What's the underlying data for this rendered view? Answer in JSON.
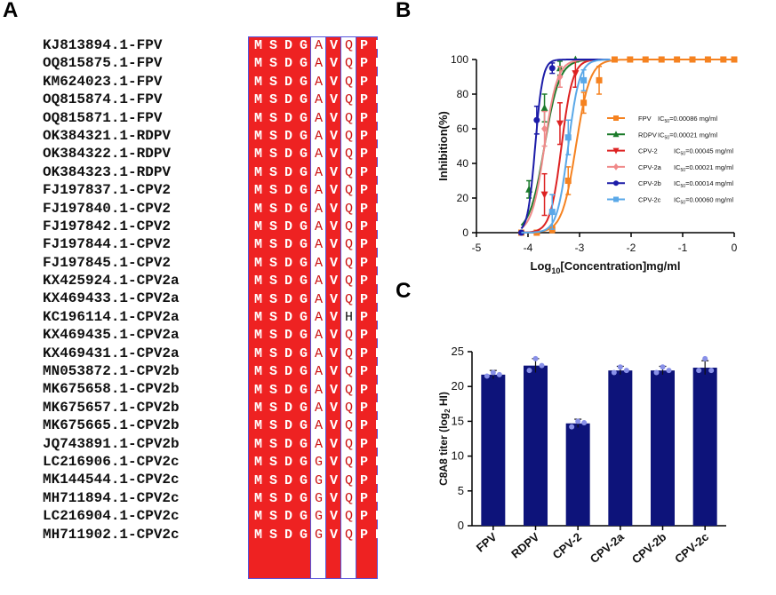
{
  "panels": {
    "a": "A",
    "b": "B",
    "c": "C"
  },
  "alignment": {
    "rows": [
      {
        "name": "KJ813894.1-FPV",
        "seq": "MSDGAVQPD"
      },
      {
        "name": "OQ815875.1-FPV",
        "seq": "MSDGAVQPD"
      },
      {
        "name": "KM624023.1-FPV",
        "seq": "MSDGAVQPD"
      },
      {
        "name": "OQ815874.1-FPV",
        "seq": "MSDGAVQPD"
      },
      {
        "name": "OQ815871.1-FPV",
        "seq": "MSDGAVQPD"
      },
      {
        "name": "OK384321.1-RDPV",
        "seq": "MSDGAVQPD"
      },
      {
        "name": "OK384322.1-RDPV",
        "seq": "MSDGAVQPD"
      },
      {
        "name": "OK384323.1-RDPV",
        "seq": "MSDGAVQPD"
      },
      {
        "name": "FJ197837.1-CPV2",
        "seq": "MSDGAVQPD"
      },
      {
        "name": "FJ197840.1-CPV2",
        "seq": "MSDGAVQPD"
      },
      {
        "name": "FJ197842.1-CPV2",
        "seq": "MSDGAVQPD"
      },
      {
        "name": "FJ197844.1-CPV2",
        "seq": "MSDGAVQPD"
      },
      {
        "name": "FJ197845.1-CPV2",
        "seq": "MSDGAVQPD"
      },
      {
        "name": "KX425924.1-CPV2a",
        "seq": "MSDGAVQPD"
      },
      {
        "name": "KX469433.1-CPV2a",
        "seq": "MSDGAVQPD"
      },
      {
        "name": "KC196114.1-CPV2a",
        "seq": "MSDGAVHPD"
      },
      {
        "name": "KX469435.1-CPV2a",
        "seq": "MSDGAVQPD"
      },
      {
        "name": "KX469431.1-CPV2a",
        "seq": "MSDGAVQPD"
      },
      {
        "name": "MN053872.1-CPV2b",
        "seq": "MSDGAVQPD"
      },
      {
        "name": "MK675658.1-CPV2b",
        "seq": "MSDGAVQPD"
      },
      {
        "name": "MK675657.1-CPV2b",
        "seq": "MSDGAVQPD"
      },
      {
        "name": "MK675665.1-CPV2b",
        "seq": "MSDGAVQPD"
      },
      {
        "name": "JQ743891.1-CPV2b",
        "seq": "MSDGAVQPD"
      },
      {
        "name": "LC216906.1-CPV2c",
        "seq": "MSDGGVQPD"
      },
      {
        "name": "MK144544.1-CPV2c",
        "seq": "MSDGGVQPD"
      },
      {
        "name": "MH711894.1-CPV2c",
        "seq": "MSDGGVQPD"
      },
      {
        "name": "LC216904.1-CPV2c",
        "seq": "MSDGGVQPD"
      },
      {
        "name": "MH711902.1-CPV2c",
        "seq": "MSDGGVQPD"
      }
    ],
    "variable_columns": [
      4,
      6
    ],
    "colors": {
      "conserved_bg": "#ee2222",
      "variable_text": "#cc1111",
      "frame": "#5555dd"
    }
  },
  "chart_data": [
    {
      "type": "line",
      "panel": "B",
      "xlabel_prefix": "Log",
      "xlabel_sub": "10",
      "xlabel_rest": "[Concentration]mg/ml",
      "ylabel": "Inhibition(%)",
      "xlim": [
        -5,
        0
      ],
      "ylim": [
        0,
        100
      ],
      "xticks": [
        -5,
        -4,
        -3,
        -2,
        -1,
        0
      ],
      "yticks": [
        0,
        20,
        40,
        60,
        80,
        100
      ],
      "series": [
        {
          "name": "FPV",
          "ic50_label": "IC",
          "ic50_sub": "50",
          "ic50_value": "=0.00086 mg/ml",
          "log_ic50": -3.07,
          "hill": 3.2,
          "color": "#f58220",
          "marker": "square",
          "x": [
            -4.13,
            -3.83,
            -3.53,
            -3.22,
            -2.92,
            -2.62,
            -2.32,
            -2.02,
            -1.72,
            -1.41,
            -1.11,
            -0.81,
            -0.51,
            -0.21,
            0
          ],
          "y": [
            0,
            0,
            2,
            30,
            75,
            88,
            100,
            100,
            100,
            100,
            100,
            100,
            100,
            100,
            100
          ],
          "err": [
            0,
            0,
            2,
            8,
            6,
            8,
            0,
            0,
            0,
            0,
            0,
            0,
            0,
            0,
            0
          ]
        },
        {
          "name": "RDPV",
          "ic50_label": "IC",
          "ic50_sub": "50",
          "ic50_value": "=0.00021 mg/ml",
          "log_ic50": -3.68,
          "hill": 3.0,
          "color": "#1a7a2a",
          "marker": "triangle",
          "x": [
            -3.98,
            -3.68,
            -3.38,
            -3.08
          ],
          "y": [
            25,
            72,
            95,
            100
          ],
          "err": [
            5,
            8,
            4,
            0
          ]
        },
        {
          "name": "CPV-2",
          "ic50_label": "IC",
          "ic50_sub": "50",
          "ic50_value": "=0.00045 mg/ml",
          "log_ic50": -3.35,
          "hill": 4.0,
          "color": "#dd2222",
          "marker": "triangle-down",
          "x": [
            -3.68,
            -3.38,
            -3.08
          ],
          "y": [
            22,
            63,
            92
          ],
          "err": [
            12,
            12,
            8
          ]
        },
        {
          "name": "CPV-2a",
          "ic50_label": "IC",
          "ic50_sub": "50",
          "ic50_value": "=0.00021 mg/ml",
          "log_ic50": -3.68,
          "hill": 3.5,
          "color": "#f08a8a",
          "marker": "diamond",
          "x": [
            -3.68,
            -3.38
          ],
          "y": [
            60,
            90
          ],
          "err": [
            10,
            6
          ]
        },
        {
          "name": "CPV-2b",
          "ic50_label": "IC",
          "ic50_sub": "50",
          "ic50_value": "=0.00014 mg/ml",
          "log_ic50": -3.86,
          "hill": 6.0,
          "color": "#1c1ca8",
          "marker": "circle",
          "x": [
            -4.13,
            -3.83,
            -3.53
          ],
          "y": [
            0,
            65,
            95
          ],
          "err": [
            0,
            8,
            3
          ]
        },
        {
          "name": "CPV-2c",
          "ic50_label": "IC",
          "ic50_sub": "50",
          "ic50_value": "=0.00060 mg/ml",
          "log_ic50": -3.22,
          "hill": 4.0,
          "color": "#5aa8e8",
          "marker": "square",
          "x": [
            -3.53,
            -3.22,
            -2.92
          ],
          "y": [
            12,
            55,
            88
          ],
          "err": [
            10,
            10,
            6
          ]
        }
      ]
    },
    {
      "type": "bar",
      "panel": "C",
      "ylabel_main": "C8A8 titer (log",
      "ylabel_sub": "2",
      "ylabel_end": " HI)",
      "categories": [
        "FPV",
        "RDPV",
        "CPV-2",
        "CPV-2a",
        "CPV-2b",
        "CPV-2c"
      ],
      "values": [
        21.7,
        23.0,
        14.7,
        22.3,
        22.3,
        22.7
      ],
      "err": [
        0.6,
        1.0,
        0.6,
        0.6,
        0.6,
        1.0
      ],
      "points": [
        [
          21.5,
          22.0,
          21.7
        ],
        [
          22.3,
          24.0,
          23.0
        ],
        [
          14.2,
          15.0,
          14.8
        ],
        [
          22.0,
          22.8,
          22.3
        ],
        [
          22.0,
          22.8,
          22.3
        ],
        [
          22.3,
          24.0,
          22.3
        ]
      ],
      "ylim": [
        0,
        25
      ],
      "yticks": [
        0,
        5,
        10,
        15,
        20,
        25
      ],
      "bar_color": "#0d137a",
      "point_color": "#8890e8"
    }
  ]
}
